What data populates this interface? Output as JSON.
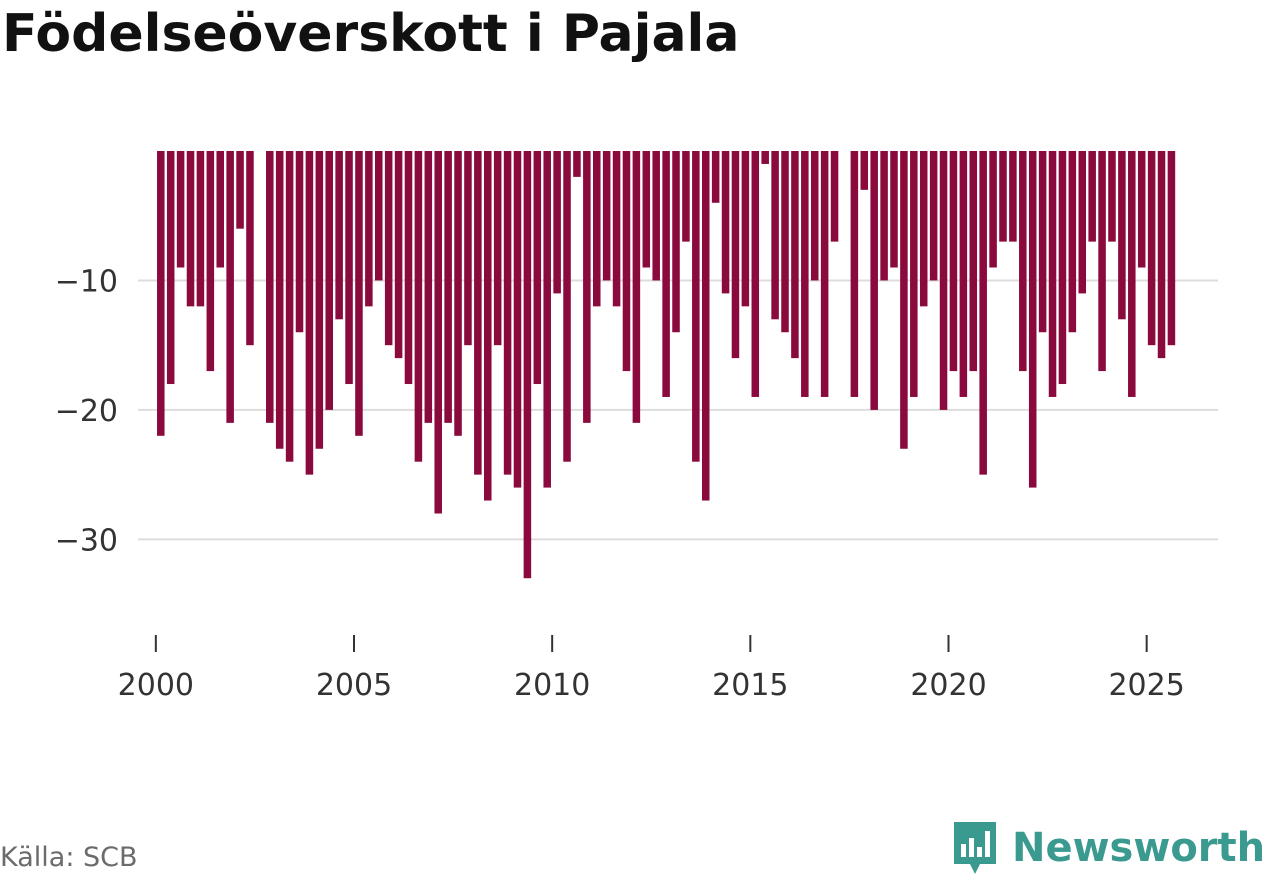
{
  "title": "Födelseöverskott i Pajala",
  "source": "Källa: SCB",
  "brand": {
    "name": "Newsworthy",
    "icon": "newsworthy-logo-icon",
    "color": "#3a9a8f"
  },
  "colors": {
    "bar": "#8b0a3e",
    "grid": "#dddddd",
    "axis_text": "#333333"
  },
  "chart_data": {
    "type": "bar",
    "title": "Födelseöverskott i Pajala",
    "xlabel": "",
    "ylabel": "",
    "ylim": [
      -37,
      0
    ],
    "xlim": [
      1999.55,
      2026.8
    ],
    "yticks": [
      -10,
      -20,
      -30
    ],
    "ytick_labels": [
      "−10",
      "−20",
      "−30"
    ],
    "xticks": [
      2000,
      2005,
      2010,
      2015,
      2020,
      2025
    ],
    "xtick_labels": [
      "2000",
      "2005",
      "2010",
      "2015",
      "2020",
      "2025"
    ],
    "grid": true,
    "bar_width_years": 0.19,
    "series": [
      {
        "name": "Födelseöverskott",
        "x": [
          2000.125,
          2000.375,
          2000.625,
          2000.875,
          2001.125,
          2001.375,
          2001.625,
          2001.875,
          2002.125,
          2002.375,
          2002.625,
          2002.875,
          2003.125,
          2003.375,
          2003.625,
          2003.875,
          2004.125,
          2004.375,
          2004.625,
          2004.875,
          2005.125,
          2005.375,
          2005.625,
          2005.875,
          2006.125,
          2006.375,
          2006.625,
          2006.875,
          2007.125,
          2007.375,
          2007.625,
          2007.875,
          2008.125,
          2008.375,
          2008.625,
          2008.875,
          2009.125,
          2009.375,
          2009.625,
          2009.875,
          2010.125,
          2010.375,
          2010.625,
          2010.875,
          2011.125,
          2011.375,
          2011.625,
          2011.875,
          2012.125,
          2012.375,
          2012.625,
          2012.875,
          2013.125,
          2013.375,
          2013.625,
          2013.875,
          2014.125,
          2014.375,
          2014.625,
          2014.875,
          2015.125,
          2015.375,
          2015.625,
          2015.875,
          2016.125,
          2016.375,
          2016.625,
          2016.875,
          2017.125,
          2017.375,
          2017.625,
          2017.875,
          2018.125,
          2018.375,
          2018.625,
          2018.875,
          2019.125,
          2019.375,
          2019.625,
          2019.875,
          2020.125,
          2020.375,
          2020.625,
          2020.875,
          2021.125,
          2021.375,
          2021.625,
          2021.875,
          2022.125,
          2022.375,
          2022.625,
          2022.875,
          2023.125,
          2023.375,
          2023.625,
          2023.875,
          2024.125,
          2024.375,
          2024.625,
          2024.875,
          2025.125,
          2025.375,
          2025.625
        ],
        "values": [
          -22,
          -18,
          -9,
          -12,
          -12,
          -17,
          -9,
          -21,
          -6,
          -15,
          0,
          -21,
          -23,
          -24,
          -14,
          -25,
          -23,
          -20,
          -13,
          -18,
          -22,
          -12,
          -10,
          -15,
          -16,
          -18,
          -24,
          -21,
          -28,
          -21,
          -22,
          -15,
          -25,
          -27,
          -15,
          -25,
          -26,
          -33,
          -18,
          -26,
          -11,
          -24,
          -2,
          -21,
          -12,
          -10,
          -12,
          -17,
          -21,
          -9,
          -10,
          -19,
          -14,
          -7,
          -24,
          -27,
          -4,
          -11,
          -16,
          -12,
          -19,
          -1,
          -13,
          -14,
          -16,
          -19,
          -10,
          -19,
          -7,
          0,
          -19,
          -3,
          -20,
          -10,
          -9,
          -23,
          -19,
          -12,
          -10,
          -20,
          -17,
          -19,
          -17,
          -25,
          -9,
          -7,
          -7,
          -17,
          -26,
          -14,
          -19,
          -18,
          -14,
          -11,
          -7,
          -17,
          -7,
          -13,
          -19,
          -9,
          -15,
          -16,
          -15
        ]
      }
    ]
  }
}
